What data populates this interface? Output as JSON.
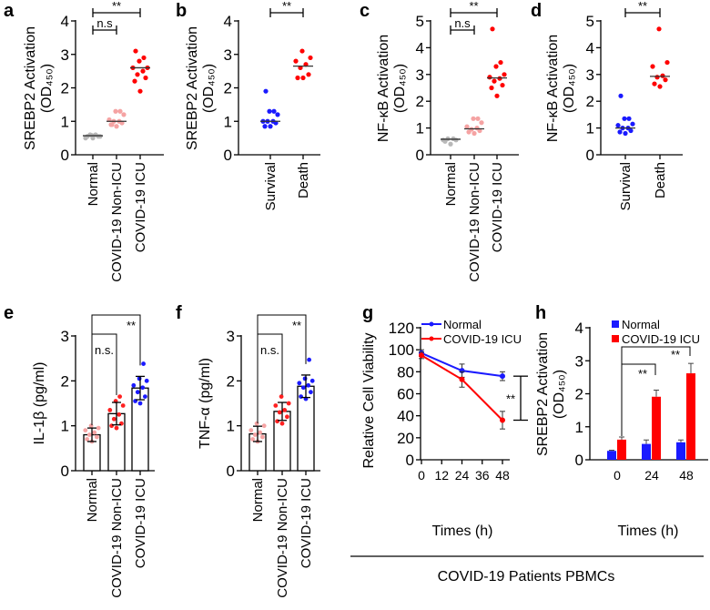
{
  "figure": {
    "group_label": "COVID-19 Patients PBMCs"
  },
  "chart_data": [
    {
      "panel": "a",
      "type": "scatter",
      "ylabel": [
        "SREBP2 Activation",
        "(OD₄₅₀)"
      ],
      "ylim": [
        0,
        4
      ],
      "yticks": [
        "0",
        "1",
        "2",
        "3",
        "4"
      ],
      "categories": [
        "Normal",
        "COVID-19 Non-ICU",
        "COVID-19 ICU"
      ],
      "colors": [
        "#b8b8b8",
        "#f5a3a3",
        "#ff0000"
      ],
      "series": [
        {
          "values": [
            0.5,
            0.55,
            0.55,
            0.6,
            0.6,
            0.5,
            0.55,
            0.58
          ],
          "median": 0.57
        },
        {
          "values": [
            0.85,
            0.9,
            0.95,
            1.0,
            1.0,
            1.05,
            1.2,
            1.3,
            1.3,
            0.9
          ],
          "median": 1.0
        },
        {
          "values": [
            1.9,
            2.2,
            2.3,
            2.4,
            2.5,
            2.6,
            2.6,
            2.8,
            2.9,
            3.1
          ],
          "median": 2.6
        }
      ],
      "significance": [
        {
          "from": 0,
          "to": 2,
          "label": "**"
        },
        {
          "from": 0,
          "to": 1,
          "label": "n.s"
        }
      ]
    },
    {
      "panel": "b",
      "type": "scatter",
      "ylabel": [
        "SREBP2 Activation",
        "(OD₄₅₀)"
      ],
      "ylim": [
        0,
        4
      ],
      "yticks": [
        "0",
        "1",
        "2",
        "3",
        "4"
      ],
      "categories": [
        "Survival",
        "Death"
      ],
      "colors": [
        "#1a1aff",
        "#ff0000"
      ],
      "series": [
        {
          "values": [
            0.85,
            0.85,
            0.95,
            1.0,
            1.0,
            1.0,
            1.2,
            1.3,
            1.3,
            1.9
          ],
          "median": 1.0
        },
        {
          "values": [
            2.3,
            2.3,
            2.4,
            2.6,
            2.7,
            2.8,
            2.9,
            3.1
          ],
          "median": 2.65
        }
      ],
      "significance": [
        {
          "from": 0,
          "to": 1,
          "label": "**"
        }
      ]
    },
    {
      "panel": "c",
      "type": "scatter",
      "ylabel": [
        "NF-κB Activation",
        "(OD₄₅₀)"
      ],
      "ylim": [
        0,
        5
      ],
      "yticks": [
        "0",
        "1",
        "2",
        "3",
        "4",
        "5"
      ],
      "categories": [
        "Normal",
        "COVID-19 Non-ICU",
        "COVID-19 ICU"
      ],
      "colors": [
        "#b8b8b8",
        "#f5a3a3",
        "#ff0000"
      ],
      "series": [
        {
          "values": [
            0.4,
            0.5,
            0.55,
            0.6,
            0.6,
            0.55
          ],
          "median": 0.58
        },
        {
          "values": [
            0.8,
            0.85,
            0.9,
            0.95,
            1.0,
            1.05,
            1.2,
            1.35,
            1.35
          ],
          "median": 0.97
        },
        {
          "values": [
            2.2,
            2.5,
            2.6,
            2.75,
            2.85,
            2.9,
            3.0,
            3.3,
            3.45,
            4.7
          ],
          "median": 2.87
        }
      ],
      "significance": [
        {
          "from": 0,
          "to": 2,
          "label": "**"
        },
        {
          "from": 0,
          "to": 1,
          "label": "n.s"
        }
      ]
    },
    {
      "panel": "d",
      "type": "scatter",
      "ylabel": [
        "NF-κB Activation",
        "(OD₄₅₀)"
      ],
      "ylim": [
        0,
        5
      ],
      "yticks": [
        "0",
        "1",
        "2",
        "3",
        "4",
        "5"
      ],
      "categories": [
        "Survival",
        "Death"
      ],
      "colors": [
        "#1a1aff",
        "#ff0000"
      ],
      "series": [
        {
          "values": [
            0.8,
            0.85,
            0.9,
            1.0,
            1.0,
            1.1,
            1.15,
            1.35,
            1.35,
            2.2
          ],
          "median": 1.0
        },
        {
          "values": [
            2.55,
            2.65,
            2.8,
            2.9,
            2.95,
            3.3,
            3.45,
            4.7
          ],
          "median": 2.93
        }
      ],
      "significance": [
        {
          "from": 0,
          "to": 1,
          "label": "**"
        }
      ]
    },
    {
      "panel": "e",
      "type": "bar",
      "ylabel": [
        "IL-1β (pg/ml)"
      ],
      "ylim": [
        0,
        3
      ],
      "yticks": [
        "0",
        "1",
        "2",
        "3"
      ],
      "categories": [
        "Normal",
        "COVID-19 Non-ICU",
        "COVID-19 ICU"
      ],
      "colors": [
        "#f5a3a3",
        "#ff2020",
        "#1a1aff"
      ],
      "means": [
        0.8,
        1.27,
        1.84
      ],
      "errors": [
        0.15,
        0.25,
        0.26
      ],
      "points": [
        [
          0.65,
          0.7,
          0.75,
          0.8,
          0.85,
          0.9,
          0.95,
          1.0
        ],
        [
          0.95,
          1.0,
          1.05,
          1.15,
          1.25,
          1.35,
          1.45,
          1.55,
          1.65
        ],
        [
          1.5,
          1.55,
          1.65,
          1.75,
          1.85,
          1.9,
          2.0,
          2.05,
          2.38
        ]
      ],
      "significance": [
        {
          "from": 0,
          "to": 2,
          "label": "**"
        },
        {
          "from": 0,
          "to": 1,
          "label": "n.s."
        }
      ]
    },
    {
      "panel": "f",
      "type": "bar",
      "ylabel": [
        "TNF-α (pg/ml)"
      ],
      "ylim": [
        0,
        3
      ],
      "yticks": [
        "0",
        "1",
        "2",
        "3"
      ],
      "categories": [
        "Normal",
        "COVID-19 Non-ICU",
        "COVID-19 ICU"
      ],
      "colors": [
        "#f5a3a3",
        "#ff2020",
        "#1a1aff"
      ],
      "means": [
        0.82,
        1.32,
        1.88
      ],
      "errors": [
        0.17,
        0.2,
        0.25
      ],
      "points": [
        [
          0.65,
          0.7,
          0.75,
          0.8,
          0.85,
          0.9,
          1.0,
          1.05
        ],
        [
          1.05,
          1.1,
          1.2,
          1.3,
          1.35,
          1.45,
          1.5,
          1.65
        ],
        [
          1.6,
          1.65,
          1.75,
          1.85,
          1.9,
          1.95,
          2.0,
          2.05,
          2.47
        ]
      ],
      "significance": [
        {
          "from": 0,
          "to": 2,
          "label": "**"
        },
        {
          "from": 0,
          "to": 1,
          "label": "n.s."
        }
      ]
    },
    {
      "panel": "g",
      "type": "line",
      "ylabel": [
        "Relative Cell Viability"
      ],
      "xlabel": "Times (h)",
      "ylim": [
        0,
        120
      ],
      "yticks": [
        "0",
        "20",
        "40",
        "60",
        "80",
        "100",
        "120"
      ],
      "xlim": [
        0,
        48
      ],
      "xticks": [
        "0",
        "12",
        "24",
        "36",
        "48"
      ],
      "legend": "top-left",
      "series": [
        {
          "name": "Normal",
          "color": "#1a1aff",
          "x": [
            0,
            24,
            48
          ],
          "y": [
            97,
            81,
            76
          ],
          "err": [
            3,
            6,
            4
          ]
        },
        {
          "name": "COVID-19 ICU",
          "color": "#ff0000",
          "x": [
            0,
            24,
            48
          ],
          "y": [
            95,
            73,
            36
          ],
          "err": [
            3,
            7,
            8
          ]
        }
      ],
      "significance": [
        {
          "label": "**"
        }
      ]
    },
    {
      "panel": "h",
      "type": "bar",
      "ylabel": [
        "SREBP2 Activation",
        "(OD₄₅₀)"
      ],
      "xlabel": "Times (h)",
      "ylim": [
        0,
        4
      ],
      "yticks": [
        "0",
        "1",
        "2",
        "3",
        "4"
      ],
      "categories": [
        "0",
        "24",
        "48"
      ],
      "legend": "top-left",
      "series": [
        {
          "name": "Normal",
          "color": "#1a1aff",
          "values": [
            0.27,
            0.48,
            0.53
          ],
          "err": [
            0.02,
            0.12,
            0.07
          ]
        },
        {
          "name": "COVID-19 ICU",
          "color": "#ff0000",
          "values": [
            0.61,
            1.91,
            2.62
          ],
          "err": [
            0.08,
            0.2,
            0.3
          ]
        }
      ],
      "significance": [
        {
          "label": "**"
        },
        {
          "label": "**"
        }
      ]
    }
  ]
}
